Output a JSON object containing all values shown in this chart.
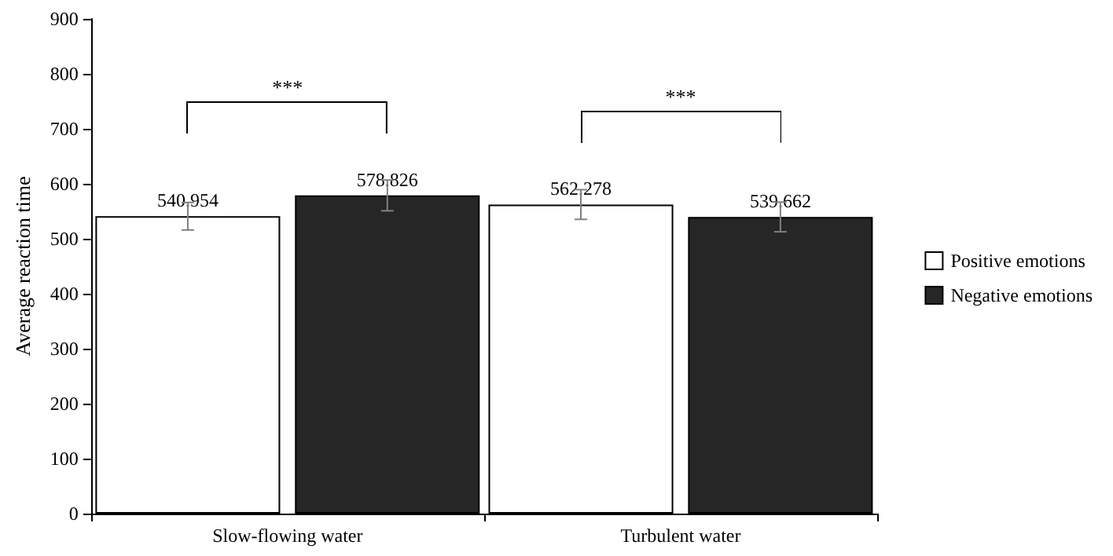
{
  "chart_data": {
    "type": "bar",
    "ylabel": "Average reaction time",
    "categories": [
      "Slow-flowing water",
      "Turbulent water"
    ],
    "series": [
      {
        "name": "Positive emotions",
        "color": "#ffffff",
        "values": [
          540.954,
          562.278
        ],
        "errors": [
          25,
          27
        ]
      },
      {
        "name": "Negative emotions",
        "color": "#262626",
        "values": [
          578.826,
          539.662
        ],
        "errors": [
          28,
          27
        ]
      }
    ],
    "ylim": [
      0,
      900
    ],
    "yticks": [
      0,
      100,
      200,
      300,
      400,
      500,
      600,
      700,
      800,
      900
    ],
    "data_labels": true,
    "grid": false,
    "legend": "right",
    "annotations": [
      "***",
      "***"
    ]
  }
}
